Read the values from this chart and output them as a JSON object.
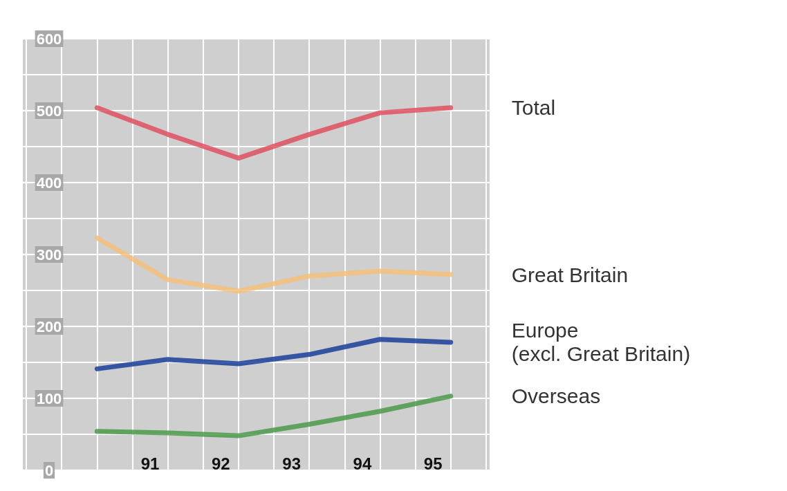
{
  "chart_data": {
    "type": "line",
    "x": [
      90.25,
      91.25,
      92.25,
      93.25,
      94.25,
      95.25
    ],
    "series": [
      {
        "name": "Total",
        "color": "#e0505f",
        "values": [
          504,
          467,
          434,
          467,
          497,
          504
        ]
      },
      {
        "name": "Great Britain",
        "color": "#f5c07a",
        "values": [
          323,
          265,
          249,
          270,
          277,
          272
        ]
      },
      {
        "name": "Europe\n(excl. Great Britain)",
        "color": "#1a3f9a",
        "values": [
          141,
          154,
          148,
          161,
          182,
          178
        ]
      },
      {
        "name": "Overseas",
        "color": "#4a9a4a",
        "values": [
          54,
          52,
          48,
          64,
          82,
          103
        ]
      }
    ],
    "xlim": [
      89.2,
      95.8
    ],
    "xticks": [
      {
        "value": 89.25,
        "label": null
      },
      {
        "value": 89.75,
        "label": null
      },
      {
        "value": 90.25,
        "label": null
      },
      {
        "value": 90.75,
        "label": null
      },
      91,
      {
        "value": 91.25,
        "label": null
      },
      {
        "value": 91.75,
        "label": null
      },
      92,
      {
        "value": 92.25,
        "label": null
      },
      {
        "value": 92.75,
        "label": null
      },
      93,
      {
        "value": 93.25,
        "label": null
      },
      {
        "value": 93.75,
        "label": null
      },
      94,
      {
        "value": 94.25,
        "label": null
      },
      {
        "value": 94.75,
        "label": null
      },
      95,
      {
        "value": 95.25,
        "label": null
      },
      {
        "value": 95.75,
        "label": null
      }
    ],
    "ylim": [
      0,
      600
    ],
    "yticks": [
      0,
      {
        "value": 50,
        "label": null
      },
      100,
      {
        "value": 150,
        "label": null
      },
      200,
      {
        "value": 250,
        "label": null
      },
      300,
      {
        "value": 350,
        "label": null
      },
      400,
      {
        "value": 450,
        "label": null
      },
      500,
      {
        "value": 550,
        "label": null
      },
      600
    ],
    "grid": true,
    "legend": false,
    "marker": "none",
    "line_style": "solid"
  }
}
